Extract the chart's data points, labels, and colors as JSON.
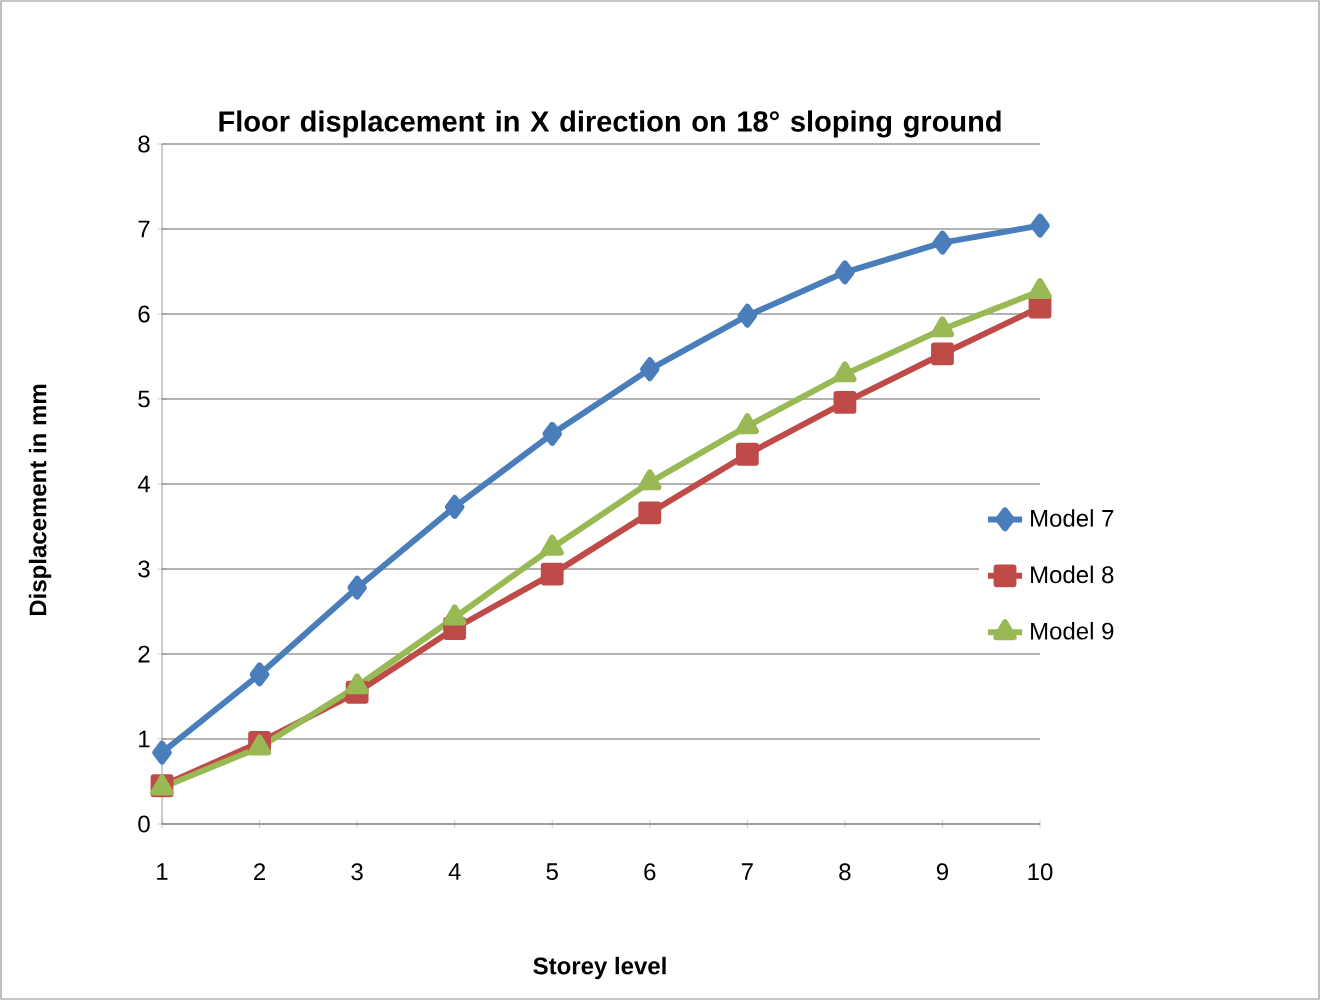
{
  "chart_data": {
    "type": "line",
    "title": "Floor displacement in X  direction on 18° sloping ground",
    "xlabel": "Storey level",
    "ylabel": "Displacement in mm",
    "categories": [
      "1",
      "2",
      "3",
      "4",
      "5",
      "6",
      "7",
      "8",
      "9",
      "10"
    ],
    "ylim": [
      0,
      8
    ],
    "yticks": [
      0,
      1,
      2,
      3,
      4,
      5,
      6,
      7,
      8
    ],
    "grid": "y",
    "legend": "right",
    "series": [
      {
        "name": "Model 7",
        "color": "#4a7ebb",
        "marker": "diamond",
        "values": [
          0.84,
          1.76,
          2.78,
          3.73,
          4.59,
          5.35,
          5.98,
          6.49,
          6.84,
          7.04
        ]
      },
      {
        "name": "Model 8",
        "color": "#be4b48",
        "marker": "square",
        "values": [
          0.45,
          0.96,
          1.55,
          2.3,
          2.94,
          3.66,
          4.35,
          4.96,
          5.53,
          6.08
        ]
      },
      {
        "name": "Model 9",
        "color": "#98b954",
        "marker": "triangle",
        "values": [
          0.43,
          0.9,
          1.62,
          2.43,
          3.25,
          4.02,
          4.68,
          5.29,
          5.82,
          6.27
        ]
      }
    ]
  }
}
